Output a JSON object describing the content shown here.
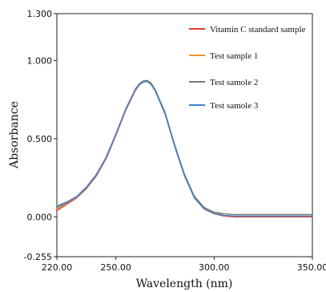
{
  "chart_data": {
    "type": "line",
    "xlabel": "Wavelength (nm)",
    "ylabel": "Absorbance",
    "xlim": [
      220,
      350
    ],
    "ylim": [
      -0.255,
      1.3
    ],
    "x_ticks": [
      "220.00",
      "250.00",
      "300.00",
      "350.00"
    ],
    "y_ticks": [
      "1.300",
      "1.000",
      "0.500",
      "0.000",
      "-0.255"
    ],
    "legend_position": "top-right",
    "grid": false,
    "x": [
      220,
      225,
      230,
      235,
      240,
      245,
      250,
      255,
      260,
      262,
      264,
      266,
      268,
      270,
      275,
      280,
      285,
      290,
      295,
      300,
      305,
      310,
      315,
      320,
      330,
      340,
      350
    ],
    "series": [
      {
        "name": "Vitamin C standard sample",
        "color": "#e8392e",
        "values": [
          0.04,
          0.08,
          0.12,
          0.18,
          0.26,
          0.37,
          0.52,
          0.68,
          0.81,
          0.845,
          0.865,
          0.87,
          0.85,
          0.81,
          0.66,
          0.45,
          0.26,
          0.12,
          0.05,
          0.02,
          0.005,
          0.0,
          0.0,
          0.0,
          0.0,
          0.0,
          0.0
        ]
      },
      {
        "name": "Test sample 1",
        "color": "#f0952b",
        "values": [
          0.05,
          0.085,
          0.125,
          0.185,
          0.265,
          0.375,
          0.525,
          0.685,
          0.815,
          0.848,
          0.868,
          0.872,
          0.852,
          0.812,
          0.665,
          0.455,
          0.265,
          0.125,
          0.055,
          0.025,
          0.01,
          0.005,
          0.005,
          0.005,
          0.005,
          0.005,
          0.005
        ]
      },
      {
        "name": "Test samole 2",
        "color": "#7a7a6a",
        "values": [
          0.07,
          0.095,
          0.13,
          0.19,
          0.27,
          0.38,
          0.53,
          0.69,
          0.82,
          0.852,
          0.87,
          0.873,
          0.855,
          0.815,
          0.67,
          0.46,
          0.27,
          0.13,
          0.06,
          0.03,
          0.02,
          0.015,
          0.015,
          0.015,
          0.015,
          0.015,
          0.015
        ]
      },
      {
        "name": "Test samole 3",
        "color": "#3b82d6",
        "values": [
          0.06,
          0.09,
          0.128,
          0.186,
          0.266,
          0.376,
          0.526,
          0.686,
          0.816,
          0.846,
          0.862,
          0.866,
          0.846,
          0.806,
          0.66,
          0.45,
          0.26,
          0.12,
          0.05,
          0.02,
          0.01,
          0.005,
          0.005,
          0.005,
          0.005,
          0.005,
          0.005
        ]
      }
    ]
  }
}
